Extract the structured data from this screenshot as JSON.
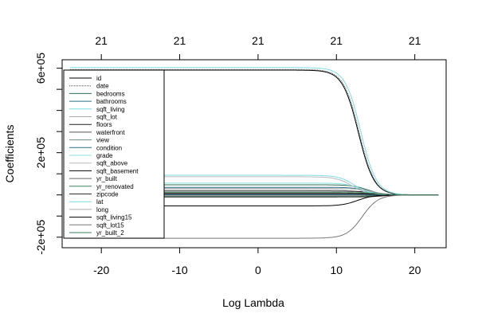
{
  "chart_data": {
    "type": "line",
    "title": "",
    "xlabel": "Log Lambda",
    "ylabel": "Coefficients",
    "xlim": [
      -25,
      24
    ],
    "ylim": [
      -250000,
      640000
    ],
    "x_ticks": [
      -20,
      -10,
      0,
      10,
      20
    ],
    "x_tick_labels": [
      "-20",
      "-10",
      "0",
      "10",
      "20"
    ],
    "y_ticks": [
      -200000,
      200000,
      600000
    ],
    "y_tick_labels": [
      "-2e+05",
      "2e+05",
      "6e+05"
    ],
    "top_axis_ticks": [
      -20,
      -10,
      0,
      10,
      20
    ],
    "top_axis_labels": [
      "21",
      "21",
      "21",
      "21",
      "21"
    ],
    "legend_position": "top-left",
    "grid": false,
    "series": [
      {
        "name": "id",
        "color": "#000000",
        "dash": "",
        "initial": 591000,
        "mid": 12.8
      },
      {
        "name": "date",
        "color": "#555555",
        "dash": "1,1",
        "initial": 594000,
        "mid": 12.9
      },
      {
        "name": "bedrooms",
        "color": "#2f6f4f",
        "dash": "",
        "initial": 48000,
        "mid": 14.0
      },
      {
        "name": "bathrooms",
        "color": "#2a6f8a",
        "dash": "",
        "initial": 36000,
        "mid": 14.2
      },
      {
        "name": "sqft_living",
        "color": "#7fdde6",
        "dash": "",
        "initial": 603000,
        "mid": 13.1
      },
      {
        "name": "sqft_lot",
        "color": "#aaaaaa",
        "dash": "",
        "initial": 24000,
        "mid": 13.4
      },
      {
        "name": "floors",
        "color": "#222222",
        "dash": "",
        "initial": 18000,
        "mid": 15.0
      },
      {
        "name": "waterfront",
        "color": "#555555",
        "dash": "",
        "initial": 10000,
        "mid": 14.8
      },
      {
        "name": "view",
        "color": "#6f8f7f",
        "dash": "",
        "initial": 4000,
        "mid": 14.6
      },
      {
        "name": "condition",
        "color": "#2a6f8a",
        "dash": "",
        "initial": 2000,
        "mid": 14.4
      },
      {
        "name": "grade",
        "color": "#8ce0e6",
        "dash": "",
        "initial": 56000,
        "mid": 13.2
      },
      {
        "name": "sqft_above",
        "color": "#bbbbbb",
        "dash": "",
        "initial": 86000,
        "mid": 12.0
      },
      {
        "name": "sqft_basement",
        "color": "#000000",
        "dash": "",
        "initial": 5000,
        "mid": 15.5
      },
      {
        "name": "yr_built",
        "color": "#666666",
        "dash": "",
        "initial": -4000,
        "mid": 15.2
      },
      {
        "name": "yr_renovated",
        "color": "#3f7f5f",
        "dash": "",
        "initial": -8000,
        "mid": 14.9
      },
      {
        "name": "zipcode",
        "color": "#333333",
        "dash": "",
        "initial": -10000,
        "mid": 15.8
      },
      {
        "name": "lat",
        "color": "#7fdde6",
        "dash": "",
        "initial": 93000,
        "mid": 12.3
      },
      {
        "name": "long",
        "color": "#aaaaaa",
        "dash": "",
        "initial": 31000,
        "mid": 14.6
      },
      {
        "name": "sqft_living15",
        "color": "#000000",
        "dash": "",
        "initial": -52000,
        "mid": 12.7
      },
      {
        "name": "sqft_lot15",
        "color": "#777777",
        "dash": "",
        "initial": -205000,
        "mid": 13.3
      },
      {
        "name": "yr_built_2",
        "color": "#3f7f5f",
        "dash": "",
        "initial": 12000,
        "mid": 15.4
      }
    ]
  }
}
